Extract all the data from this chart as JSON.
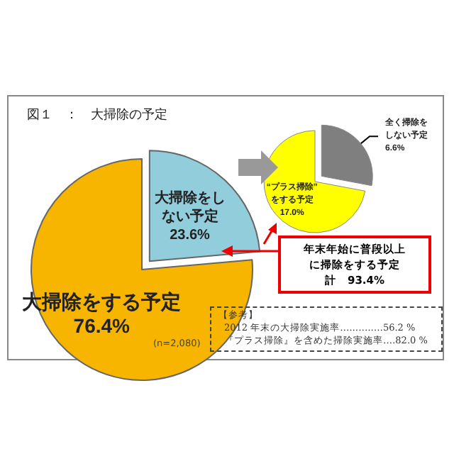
{
  "chart_data": [
    {
      "type": "pie",
      "title": "図１　：　大掃除の予定",
      "categories": [
        "大掃除をする予定",
        "大掃除をしない予定"
      ],
      "values": [
        76.4,
        23.6
      ],
      "value_labels": [
        "76.4%",
        "23.6%"
      ],
      "colors": [
        "#f7b500",
        "#92cddc"
      ],
      "annotations": [
        "年末年始に普段以上に掃除をする予定",
        "計　93.4%",
        "(n=2,080)",
        "【参考】",
        "2012 年末の大掃除実施率‥‥‥‥‥‥‥56.2 %",
        "『プラス掃除』を含めた掃除実施率‥‥82.0 %"
      ]
    },
    {
      "type": "pie",
      "categories": [
        "“プラス掃除”をする予定",
        "全く掃除をしない予定"
      ],
      "values": [
        17.0,
        6.6
      ],
      "value_labels": [
        "17.0%",
        "6.6%"
      ],
      "colors": [
        "#ffff00",
        "#7f7f7f"
      ]
    }
  ]
}
